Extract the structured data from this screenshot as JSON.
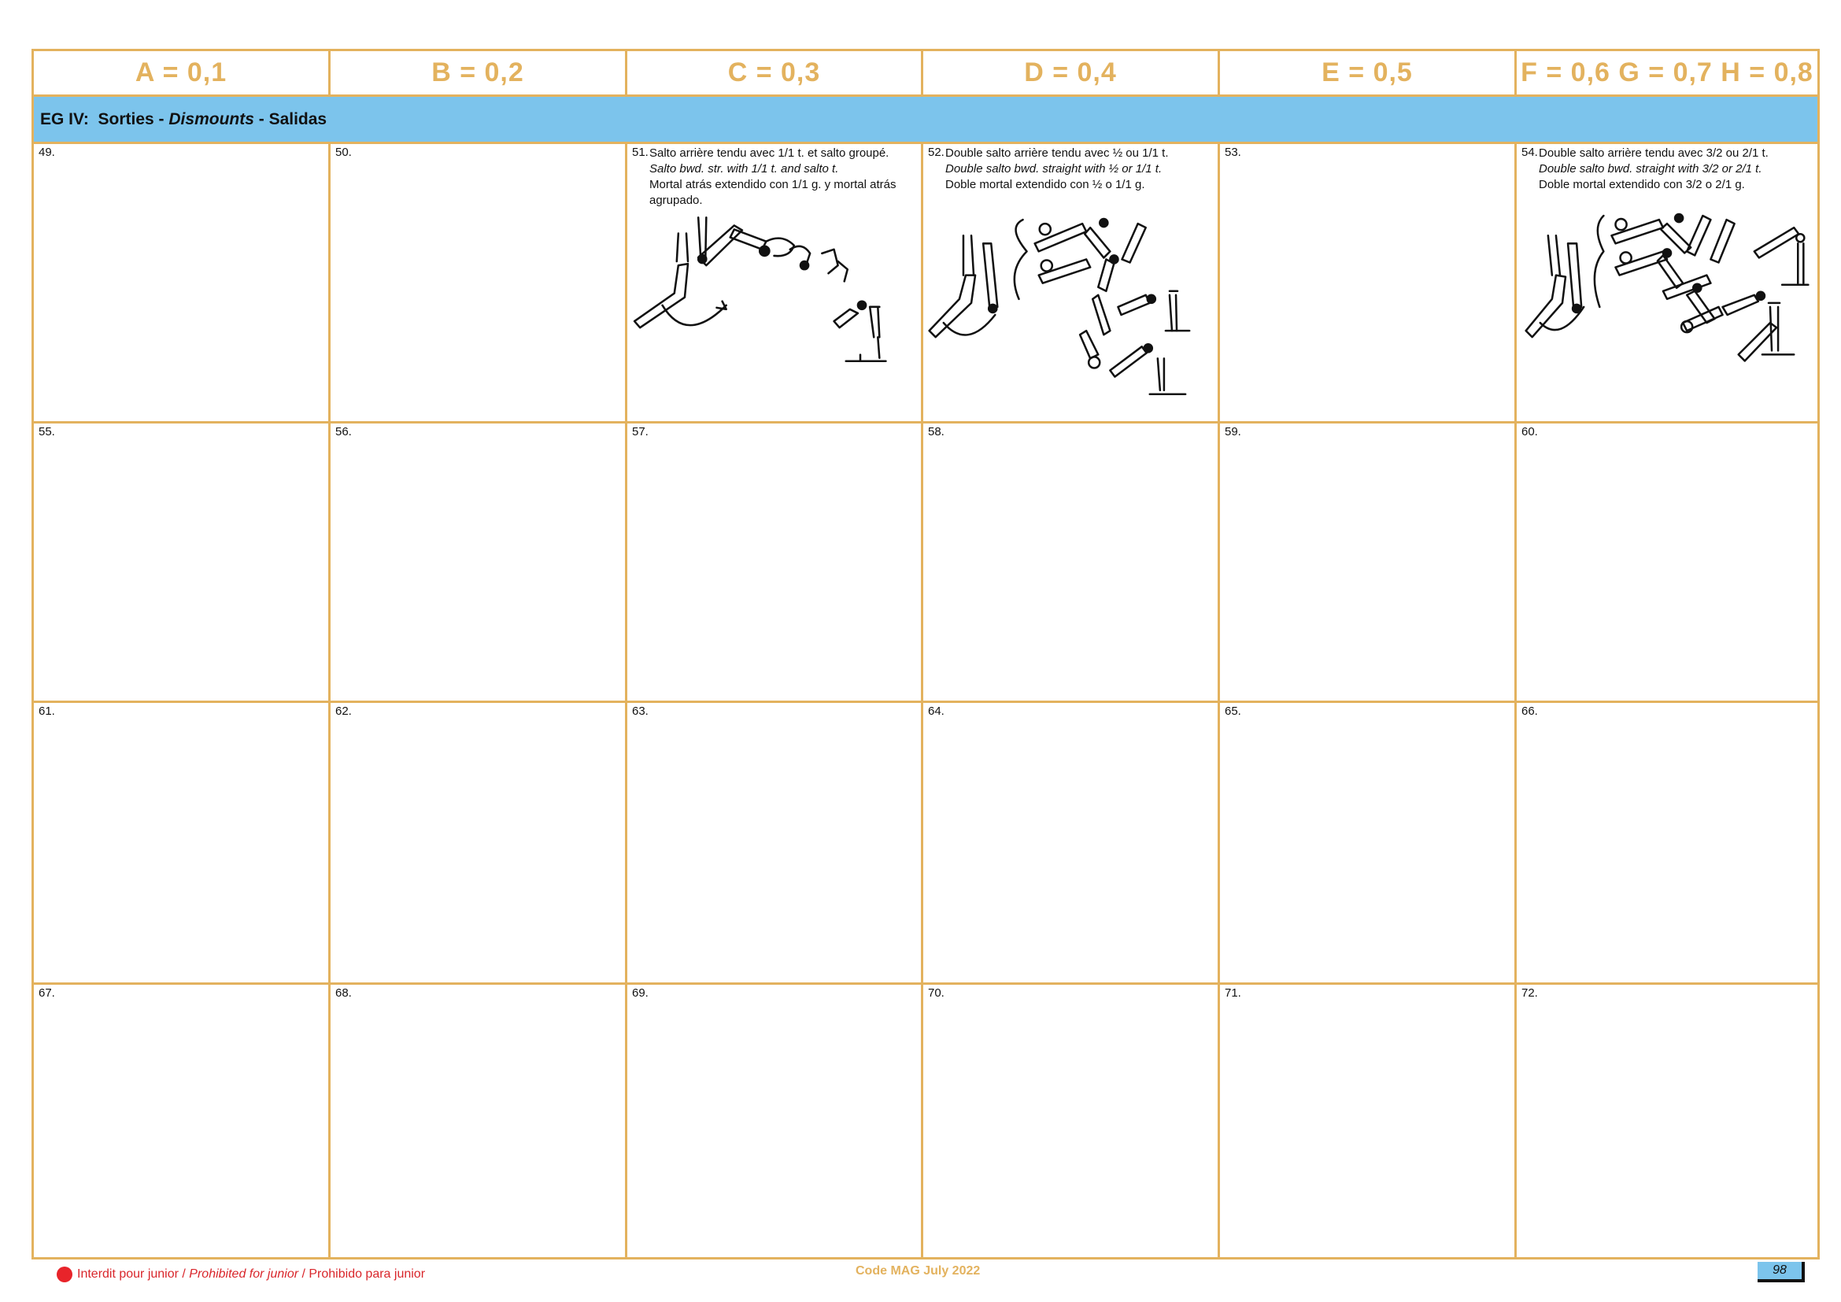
{
  "header": {
    "cols": [
      "A = 0,1",
      "B = 0,2",
      "C = 0,3",
      "D = 0,4",
      "E = 0,5",
      "F = 0,6 G = 0,7 H = 0,8"
    ]
  },
  "group": {
    "prefix": "EG IV:  Sorties - ",
    "en": "Dismounts",
    "suffix": " - Salidas"
  },
  "rows": [
    {
      "cells": [
        {
          "num": "49."
        },
        {
          "num": "50."
        },
        {
          "num": "51.",
          "fr": "Salto arrière tendu avec 1/1 t. et salto groupé.",
          "en": "Salto bwd. str. with 1/1 t. and salto t.",
          "es1": "Mortal atrás extendido con 1/1 g. y mortal atrás",
          "es2": "agrupado."
        },
        {
          "num": "52.",
          "fr": "Double salto arrière tendu avec ½ ou 1/1 t.",
          "en": "Double salto bwd. straight with ½ or 1/1 t.",
          "es1": "Doble mortal extendido con ½ o 1/1 g."
        },
        {
          "num": "53."
        },
        {
          "num": "54.",
          "fr": "Double salto arrière tendu avec 3/2 ou 2/1 t.",
          "en": "Double salto bwd. straight with 3/2 or 2/1 t.",
          "es1": "Doble mortal extendido con 3/2 o 2/1 g."
        }
      ]
    },
    {
      "cells": [
        {
          "num": "55."
        },
        {
          "num": "56."
        },
        {
          "num": "57."
        },
        {
          "num": "58."
        },
        {
          "num": "59."
        },
        {
          "num": "60."
        }
      ]
    },
    {
      "cells": [
        {
          "num": "61."
        },
        {
          "num": "62."
        },
        {
          "num": "63."
        },
        {
          "num": "64."
        },
        {
          "num": "65."
        },
        {
          "num": "66."
        }
      ]
    },
    {
      "cells": [
        {
          "num": "67."
        },
        {
          "num": "68."
        },
        {
          "num": "69."
        },
        {
          "num": "70."
        },
        {
          "num": "71."
        },
        {
          "num": "72."
        }
      ]
    }
  ],
  "footer": {
    "note_fr": "Interdit pour junior / ",
    "note_en": "Prohibited for junior",
    "note_es": " / Prohibido para junior",
    "code": "Code MAG July 2022",
    "page": "98"
  },
  "colors": {
    "border": "#e3b25e",
    "band": "#7cc4ec",
    "prohibited": "#e8242a"
  }
}
